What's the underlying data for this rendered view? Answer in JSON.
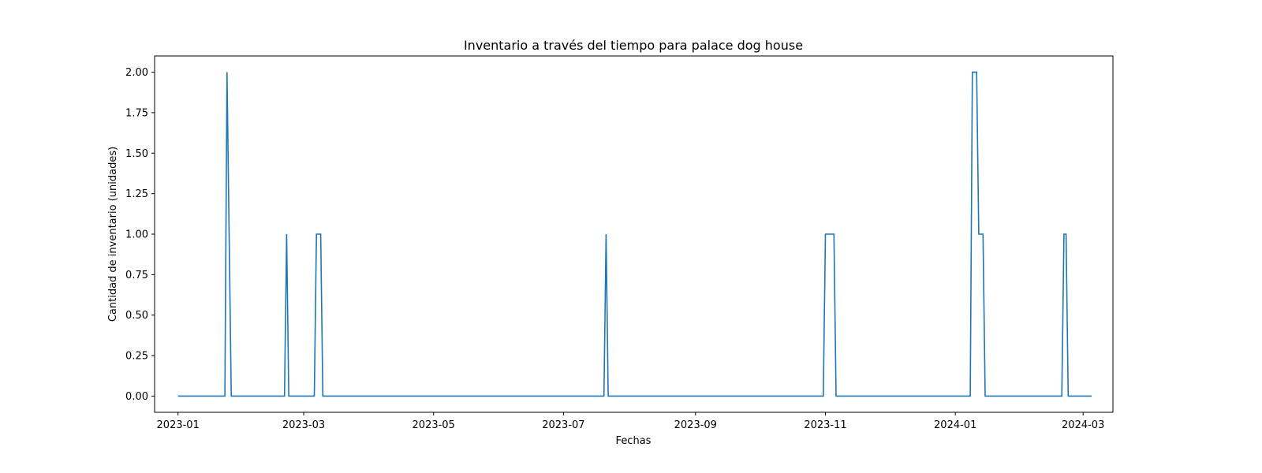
{
  "chart_data": {
    "type": "line",
    "title": "Inventario a través del tiempo para palace dog house",
    "xlabel": "Fechas",
    "ylabel": "Cantidad de inventario (unidades)",
    "x_axis_type": "date",
    "xlim": [
      "2022-12-21",
      "2024-03-15"
    ],
    "ylim": [
      -0.1,
      2.1
    ],
    "x_ticks": [
      "2023-01",
      "2023-03",
      "2023-05",
      "2023-07",
      "2023-09",
      "2023-11",
      "2024-01",
      "2024-03"
    ],
    "x_tick_dates": [
      "2023-01-01",
      "2023-03-01",
      "2023-05-01",
      "2023-07-01",
      "2023-09-01",
      "2023-11-01",
      "2024-01-01",
      "2024-03-01"
    ],
    "y_ticks": [
      "0.00",
      "0.25",
      "0.50",
      "0.75",
      "1.00",
      "1.25",
      "1.50",
      "1.75",
      "2.00"
    ],
    "grid": false,
    "legend": "none",
    "colors": {
      "series": "#1f77b4",
      "axes": "#000000",
      "background": "#ffffff"
    },
    "series": [
      {
        "x": [
          "2023-01-01",
          "2023-01-23",
          "2023-01-24",
          "2023-01-26",
          "2023-02-20",
          "2023-02-21",
          "2023-02-22",
          "2023-03-06",
          "2023-03-07",
          "2023-03-09",
          "2023-03-10",
          "2023-07-20",
          "2023-07-21",
          "2023-07-22",
          "2023-10-31",
          "2023-11-01",
          "2023-11-05",
          "2023-11-06",
          "2024-01-08",
          "2024-01-09",
          "2024-01-11",
          "2024-01-12",
          "2024-01-14",
          "2024-01-15",
          "2024-02-20",
          "2024-02-21",
          "2024-02-22",
          "2024-02-23",
          "2024-03-05"
        ],
        "y": [
          0,
          0,
          2,
          0,
          0,
          1,
          0,
          0,
          1,
          1,
          0,
          0,
          1,
          0,
          0,
          1,
          1,
          0,
          0,
          2,
          2,
          1,
          1,
          0,
          0,
          1,
          1,
          0,
          0
        ]
      }
    ]
  }
}
